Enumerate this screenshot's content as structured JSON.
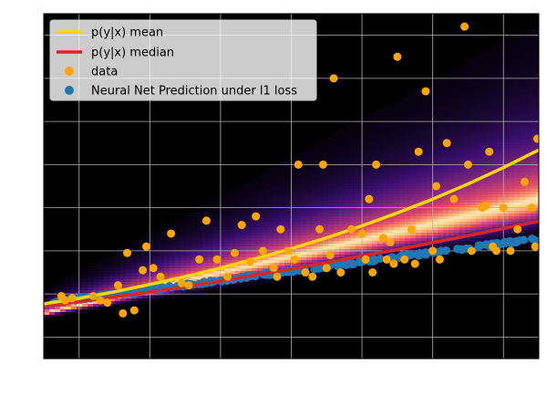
{
  "chart_data": {
    "type": "scatter",
    "title": "",
    "xlabel": "",
    "ylabel": "",
    "xlim": [
      -0.5,
      6.5
    ],
    "ylim": [
      -0.5,
      7.5
    ],
    "xticks": [
      0,
      1,
      2,
      3,
      4,
      5,
      6
    ],
    "yticks": [
      0,
      1,
      2,
      3,
      4,
      5,
      6,
      7
    ],
    "grid": true,
    "legend_position": "top-left",
    "background": "#000000",
    "density_overlay": {
      "description": "p(y|x) density heatmap",
      "center_intercept": 0.75,
      "center_slope": 0.38,
      "spread_intercept": 0.12,
      "spread_slope": 0.12,
      "colors": [
        "#000004",
        "#3b0f70",
        "#8c2981",
        "#de4968",
        "#fe9f6d",
        "#fcfdbf"
      ]
    },
    "series": [
      {
        "name": "p(y|x) mean",
        "type": "line",
        "color": "#ffd700",
        "x": [
          -0.5,
          0,
          0.5,
          1,
          1.5,
          2,
          2.5,
          3,
          3.5,
          4,
          4.5,
          5,
          5.5,
          6,
          6.5
        ],
        "y": [
          0.77,
          0.9,
          1.05,
          1.22,
          1.4,
          1.6,
          1.82,
          2.05,
          2.3,
          2.58,
          2.88,
          3.2,
          3.55,
          3.93,
          4.34
        ]
      },
      {
        "name": "p(y|x) median",
        "type": "line",
        "color": "#d62728",
        "x": [
          -0.5,
          0,
          0.5,
          1,
          1.5,
          2,
          2.5,
          3,
          3.5,
          4,
          4.5,
          5,
          5.5,
          6,
          6.5
        ],
        "y": [
          0.72,
          0.82,
          0.93,
          1.05,
          1.17,
          1.3,
          1.44,
          1.58,
          1.73,
          1.88,
          2.03,
          2.19,
          2.35,
          2.52,
          2.69
        ]
      },
      {
        "name": "data",
        "type": "scatter",
        "color": "#ffa500",
        "x": [
          -0.25,
          -0.2,
          -0.1,
          0.2,
          0.3,
          0.4,
          0.55,
          0.62,
          0.68,
          0.78,
          0.9,
          0.95,
          1.05,
          1.15,
          1.3,
          1.45,
          1.55,
          1.7,
          1.8,
          1.95,
          2.1,
          2.2,
          2.3,
          2.42,
          2.5,
          2.6,
          2.75,
          2.8,
          2.85,
          2.95,
          3.05,
          3.1,
          3.2,
          3.3,
          3.4,
          3.45,
          3.5,
          3.55,
          3.6,
          3.7,
          3.85,
          4.0,
          4.05,
          4.1,
          4.15,
          4.2,
          4.3,
          4.35,
          4.4,
          4.45,
          4.5,
          4.6,
          4.7,
          4.75,
          4.8,
          4.9,
          5.0,
          5.05,
          5.1,
          5.2,
          5.3,
          5.45,
          5.5,
          5.55,
          5.7,
          5.75,
          5.8,
          5.85,
          5.9,
          6.0,
          6.1,
          6.2,
          6.3,
          6.4,
          6.45,
          6.48
        ],
        "y": [
          0.95,
          0.85,
          0.9,
          0.95,
          0.85,
          0.8,
          1.2,
          0.55,
          1.95,
          0.62,
          1.55,
          2.1,
          1.6,
          1.4,
          2.4,
          1.25,
          1.2,
          1.8,
          2.7,
          1.8,
          1.4,
          1.95,
          2.6,
          1.75,
          2.8,
          2.0,
          1.6,
          1.4,
          2.5,
          2.0,
          1.8,
          4.0,
          1.5,
          1.4,
          2.5,
          4.0,
          1.6,
          1.9,
          6.0,
          1.5,
          2.5,
          2.4,
          1.8,
          3.2,
          1.5,
          4.0,
          2.3,
          1.8,
          2.2,
          1.7,
          6.5,
          1.8,
          2.5,
          1.7,
          4.3,
          5.7,
          2.0,
          3.5,
          1.8,
          4.5,
          3.2,
          7.2,
          4.0,
          2.0,
          3.0,
          3.05,
          4.3,
          2.1,
          2.0,
          3.0,
          2.0,
          2.5,
          3.6,
          3.0,
          2.1,
          4.6
        ]
      },
      {
        "name": "Neural Net Prediction under l1 loss",
        "type": "scatter",
        "color": "#1f77b4",
        "x_start": -0.4,
        "x_end": 6.45,
        "count": 220,
        "seed": 3
      }
    ]
  }
}
